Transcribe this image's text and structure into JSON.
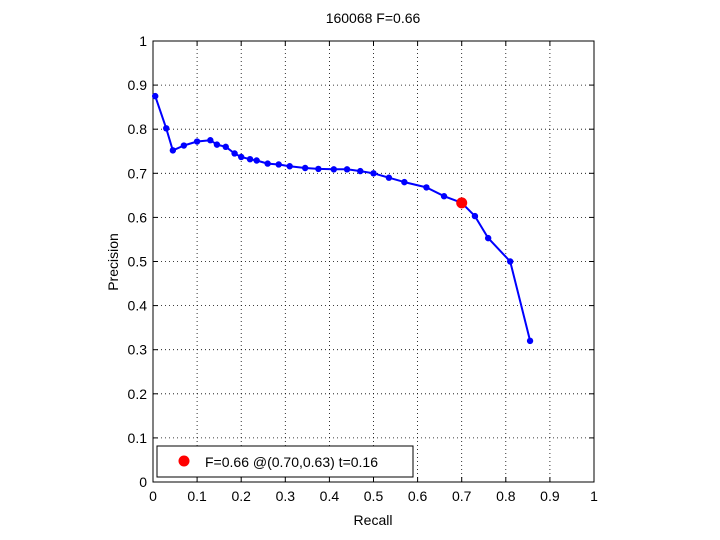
{
  "chart_data": {
    "type": "line",
    "title": "160068 F=0.66",
    "xlabel": "Recall",
    "ylabel": "Precision",
    "xlim": [
      0,
      1
    ],
    "ylim": [
      0,
      1
    ],
    "grid": true,
    "x_ticks": [
      "0",
      "0.1",
      "0.2",
      "0.3",
      "0.4",
      "0.5",
      "0.6",
      "0.7",
      "0.8",
      "0.9",
      "1"
    ],
    "y_ticks": [
      "0",
      "0.1",
      "0.2",
      "0.3",
      "0.4",
      "0.5",
      "0.6",
      "0.7",
      "0.8",
      "0.9",
      "1"
    ],
    "series": [
      {
        "color": "#0000ff",
        "points": [
          [
            0.005,
            0.875
          ],
          [
            0.03,
            0.802
          ],
          [
            0.045,
            0.752
          ],
          [
            0.07,
            0.763
          ],
          [
            0.1,
            0.772
          ],
          [
            0.13,
            0.775
          ],
          [
            0.145,
            0.765
          ],
          [
            0.165,
            0.76
          ],
          [
            0.185,
            0.745
          ],
          [
            0.2,
            0.737
          ],
          [
            0.22,
            0.732
          ],
          [
            0.235,
            0.729
          ],
          [
            0.26,
            0.722
          ],
          [
            0.285,
            0.72
          ],
          [
            0.31,
            0.716
          ],
          [
            0.345,
            0.712
          ],
          [
            0.375,
            0.71
          ],
          [
            0.41,
            0.709
          ],
          [
            0.44,
            0.709
          ],
          [
            0.47,
            0.705
          ],
          [
            0.5,
            0.7
          ],
          [
            0.535,
            0.69
          ],
          [
            0.57,
            0.68
          ],
          [
            0.62,
            0.668
          ],
          [
            0.66,
            0.648
          ],
          [
            0.7,
            0.633
          ],
          [
            0.73,
            0.603
          ],
          [
            0.76,
            0.553
          ],
          [
            0.81,
            0.5
          ],
          [
            0.855,
            0.32
          ]
        ]
      }
    ],
    "highlight": {
      "x": 0.7,
      "y": 0.633,
      "color": "#ff0000"
    },
    "legend": {
      "position": "bottom-left",
      "label": "F=0.66 @(0.70,0.63) t=0.16"
    }
  }
}
